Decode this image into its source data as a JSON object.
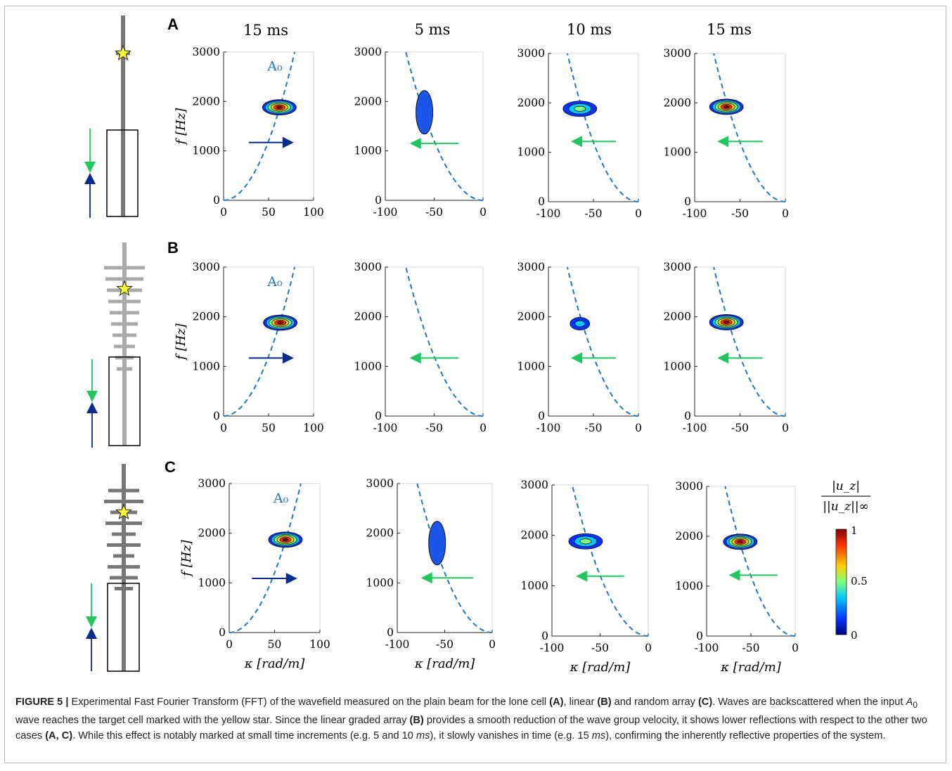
{
  "figure": {
    "panels": [
      {
        "letter": "A",
        "diagram": "lone-cell"
      },
      {
        "letter": "B",
        "diagram": "linear-array"
      },
      {
        "letter": "C",
        "diagram": "random-array"
      }
    ],
    "column_times": [
      "15 ms",
      "5 ms",
      "10 ms",
      "15 ms"
    ],
    "ylabel": "f [Hz]",
    "xlabel": "κ [rad/m]",
    "mode_label": "A₀",
    "colorbar": {
      "label_numerator": "|u_z|",
      "label_denominator": "||u_z||∞",
      "ticks": [
        "1",
        "0.5",
        "0"
      ],
      "colors": [
        "#00007f",
        "#0033ff",
        "#00c8ff",
        "#7fff7f",
        "#ffd000",
        "#ff3000",
        "#800000"
      ]
    },
    "colors": {
      "incident_arrow": "#0a2a8c",
      "reflected_arrow": "#22c55e",
      "dispersion_curve": "#1f77c4",
      "star": "#ffff33"
    }
  },
  "chart_data": [
    {
      "row": "A",
      "col": 1,
      "type": "contour",
      "title": "15 ms",
      "xlim": [
        0,
        100
      ],
      "ylim": [
        0,
        3000
      ],
      "xticks": [
        0,
        50,
        100
      ],
      "yticks": [
        0,
        1000,
        2000,
        3000
      ],
      "ylabel": "f [Hz]",
      "dispersion": "A0 (k > 0)",
      "blob": {
        "k": 62,
        "f": 1880,
        "peak": 1
      },
      "arrow": {
        "direction": "right",
        "from_k": 28,
        "to_k": 78,
        "f": 1170
      }
    },
    {
      "row": "A",
      "col": 2,
      "type": "contour",
      "title": "5 ms",
      "xlim": [
        -100,
        0
      ],
      "ylim": [
        0,
        3000
      ],
      "xticks": [
        -100,
        -50,
        0
      ],
      "yticks": [
        0,
        1000,
        2000,
        3000
      ],
      "dispersion": "A0 (k < 0)",
      "blob": {
        "k": -60,
        "f": 1780,
        "peak": 0.1
      },
      "arrow": {
        "direction": "left",
        "from_k": -25,
        "to_k": -75,
        "f": 1150
      }
    },
    {
      "row": "A",
      "col": 3,
      "type": "contour",
      "title": "10 ms",
      "xlim": [
        -100,
        0
      ],
      "ylim": [
        0,
        3000
      ],
      "xticks": [
        -100,
        -50,
        0
      ],
      "yticks": [
        0,
        1000,
        2000,
        3000
      ],
      "dispersion": "A0 (k < 0)",
      "blob": {
        "k": -65,
        "f": 1880,
        "peak": 0.5
      },
      "arrow": {
        "direction": "left",
        "from_k": -25,
        "to_k": -75,
        "f": 1220
      }
    },
    {
      "row": "A",
      "col": 4,
      "type": "contour",
      "title": "15 ms",
      "xlim": [
        -100,
        0
      ],
      "ylim": [
        0,
        3000
      ],
      "xticks": [
        -100,
        -50,
        0
      ],
      "yticks": [
        0,
        1000,
        2000,
        3000
      ],
      "dispersion": "A0 (k < 0)",
      "blob": {
        "k": -65,
        "f": 1920,
        "peak": 1
      },
      "arrow": {
        "direction": "left",
        "from_k": -25,
        "to_k": -75,
        "f": 1220
      }
    },
    {
      "row": "B",
      "col": 1,
      "type": "contour",
      "title": "",
      "xlim": [
        0,
        100
      ],
      "ylim": [
        0,
        3000
      ],
      "xticks": [
        0,
        50,
        100
      ],
      "yticks": [
        0,
        1000,
        2000,
        3000
      ],
      "ylabel": "f [Hz]",
      "dispersion": "A0 (k > 0)",
      "blob": {
        "k": 63,
        "f": 1880,
        "peak": 1
      },
      "arrow": {
        "direction": "right",
        "from_k": 28,
        "to_k": 78,
        "f": 1170
      }
    },
    {
      "row": "B",
      "col": 2,
      "type": "contour",
      "title": "",
      "xlim": [
        -100,
        0
      ],
      "ylim": [
        0,
        3000
      ],
      "xticks": [
        -100,
        -50,
        0
      ],
      "yticks": [
        0,
        1000,
        2000,
        3000
      ],
      "dispersion": "A0 (k < 0)",
      "blob": null,
      "arrow": {
        "direction": "left",
        "from_k": -25,
        "to_k": -75,
        "f": 1170
      }
    },
    {
      "row": "B",
      "col": 3,
      "type": "contour",
      "title": "",
      "xlim": [
        -100,
        0
      ],
      "ylim": [
        0,
        3000
      ],
      "xticks": [
        -100,
        -50,
        0
      ],
      "yticks": [
        0,
        1000,
        2000,
        3000
      ],
      "dispersion": "A0 (k < 0)",
      "blob": {
        "k": -65,
        "f": 1860,
        "peak": 0.4,
        "small": true
      },
      "arrow": {
        "direction": "left",
        "from_k": -25,
        "to_k": -75,
        "f": 1170
      }
    },
    {
      "row": "B",
      "col": 4,
      "type": "contour",
      "title": "",
      "xlim": [
        -100,
        0
      ],
      "ylim": [
        0,
        3000
      ],
      "xticks": [
        -100,
        -50,
        0
      ],
      "yticks": [
        0,
        1000,
        2000,
        3000
      ],
      "dispersion": "A0 (k < 0)",
      "blob": {
        "k": -65,
        "f": 1890,
        "peak": 1
      },
      "arrow": {
        "direction": "left",
        "from_k": -25,
        "to_k": -75,
        "f": 1170
      }
    },
    {
      "row": "C",
      "col": 1,
      "type": "contour",
      "title": "",
      "xlim": [
        0,
        100
      ],
      "ylim": [
        0,
        3000
      ],
      "xticks": [
        0,
        50,
        100
      ],
      "yticks": [
        0,
        1000,
        2000,
        3000
      ],
      "ylabel": "f [Hz]",
      "xlabel": "κ [rad/m]",
      "dispersion": "A0 (k > 0)",
      "blob": {
        "k": 62,
        "f": 1870,
        "peak": 1
      },
      "arrow": {
        "direction": "right",
        "from_k": 25,
        "to_k": 75,
        "f": 1090
      }
    },
    {
      "row": "C",
      "col": 2,
      "type": "contour",
      "title": "",
      "xlim": [
        -100,
        0
      ],
      "ylim": [
        0,
        3000
      ],
      "xticks": [
        -100,
        -50,
        0
      ],
      "yticks": [
        0,
        1000,
        2000,
        3000
      ],
      "xlabel": "κ [rad/m]",
      "dispersion": "A0 (k < 0)",
      "blob": {
        "k": -58,
        "f": 1800,
        "peak": 0.1
      },
      "arrow": {
        "direction": "left",
        "from_k": -20,
        "to_k": -75,
        "f": 1100
      }
    },
    {
      "row": "C",
      "col": 3,
      "type": "contour",
      "title": "",
      "xlim": [
        -100,
        0
      ],
      "ylim": [
        0,
        3000
      ],
      "xticks": [
        -100,
        -50,
        0
      ],
      "yticks": [
        0,
        1000,
        2000,
        3000
      ],
      "xlabel": "κ [rad/m]",
      "dispersion": "A0 (k < 0)",
      "blob": {
        "k": -65,
        "f": 1880,
        "peak": 0.55
      },
      "arrow": {
        "direction": "left",
        "from_k": -25,
        "to_k": -75,
        "f": 1190
      }
    },
    {
      "row": "C",
      "col": 4,
      "type": "contour",
      "title": "",
      "xlim": [
        -100,
        0
      ],
      "ylim": [
        0,
        3000
      ],
      "xticks": [
        -100,
        -50,
        0
      ],
      "yticks": [
        0,
        1000,
        2000,
        3000
      ],
      "xlabel": "κ [rad/m]",
      "dispersion": "A0 (k < 0)",
      "blob": {
        "k": -62,
        "f": 1890,
        "peak": 1
      },
      "arrow": {
        "direction": "left",
        "from_k": -20,
        "to_k": -75,
        "f": 1220
      }
    }
  ],
  "caption": {
    "label": "FIGURE 5 |",
    "parts": [
      {
        "t": " Experimental Fast Fourier Transform (FFT) of the wavefield measured on the plain beam for the lone cell "
      },
      {
        "b": "(A)"
      },
      {
        "t": ", linear "
      },
      {
        "b": "(B)"
      },
      {
        "t": " and random array "
      },
      {
        "b": "(C)"
      },
      {
        "t": ". Waves are backscattered when the input "
      },
      {
        "i": "A"
      },
      {
        "sub": "0"
      },
      {
        "t": " wave reaches the target cell marked with the yellow star. Since the linear graded array "
      },
      {
        "b": "(B)"
      },
      {
        "t": " provides a smooth reduction of the wave group velocity, it shows lower reflections with respect to the other two cases "
      },
      {
        "b": "(A, C)"
      },
      {
        "t": ". While this effect is notably marked at small time increments (e.g. 5 and 10 "
      },
      {
        "i": "ms"
      },
      {
        "t": "), it slowly vanishes in time (e.g. 15 "
      },
      {
        "i": "ms"
      },
      {
        "t": "), confirming the inherently reflective properties of the system."
      }
    ]
  }
}
